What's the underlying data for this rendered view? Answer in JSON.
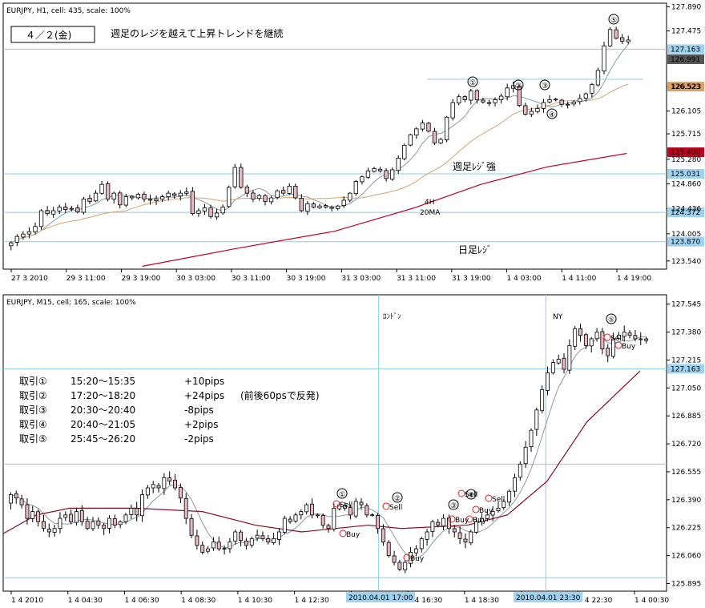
{
  "chart_data": [
    {
      "type": "candlestick",
      "title": "EURJPY, H1, cell: 435, scale: 100%",
      "date_box": "４／２(金)",
      "headline": "週足のレジを越えて上昇トレンドを継続",
      "y_ticks": [
        "127.890",
        "127.475",
        "126.523",
        "126.105",
        "125.715",
        "125.280",
        "124.860",
        "124.436",
        "124.005",
        "123.540"
      ],
      "ylim": [
        123.4,
        127.95
      ],
      "x_ticks": [
        "27 3 2010",
        "29 3 11:00",
        "29 3 19:00",
        "30 3 03:00",
        "30 3 11:00",
        "30 3 19:00",
        "31 3 03:00",
        "31 3 11:00",
        "31 3 19:00",
        "1 4 03:00",
        "1 4 11:00",
        "1 4 19:00"
      ],
      "price_tags": [
        {
          "value": "127.163",
          "bg": "#9fd2f0"
        },
        {
          "value": "126.991",
          "bg": "#555555",
          "color": "#ffffff"
        },
        {
          "value": "126.523",
          "bg": "#d9a26a"
        },
        {
          "value": "125.400",
          "bg": "#c00020",
          "color": "#ffffff"
        },
        {
          "value": "125.031",
          "bg": "#9fd2f0"
        },
        {
          "value": "124.372",
          "bg": "#9fd2f0"
        },
        {
          "value": "123.870",
          "bg": "#9fd2f0"
        }
      ],
      "hlines": [
        127.163,
        125.031,
        124.372,
        123.87
      ],
      "annotations": [
        "週足ﾚｼﾞ強",
        "4H",
        "20MA",
        "日足ﾚｼﾞ"
      ],
      "markers": [
        "①",
        "②",
        "③",
        "④",
        "⑤"
      ],
      "colors": {
        "up": "#ffffff",
        "down": "#e8b8c0",
        "sma_fast": "#8a9aaa",
        "sma_slow": "#d9a26a",
        "ma_long": "#c00020",
        "hline": "#8ccbe8"
      },
      "closes": [
        123.85,
        123.96,
        124.0,
        124.04,
        124.13,
        124.4,
        124.35,
        124.4,
        124.46,
        124.42,
        124.44,
        124.38,
        124.6,
        124.56,
        124.7,
        124.85,
        124.6,
        124.7,
        124.5,
        124.64,
        124.62,
        124.68,
        124.6,
        124.58,
        124.6,
        124.64,
        124.7,
        124.66,
        124.7,
        124.72,
        124.35,
        124.4,
        124.45,
        124.3,
        124.36,
        124.46,
        124.8,
        125.14,
        124.8,
        124.7,
        124.6,
        124.66,
        124.56,
        124.62,
        124.74,
        124.7,
        124.82,
        124.62,
        124.4,
        124.52,
        124.46,
        124.48,
        124.46,
        124.44,
        124.48,
        124.58,
        124.7,
        124.9,
        124.98,
        125.08,
        125.12,
        125.08,
        124.95,
        125.1,
        125.3,
        125.52,
        125.7,
        125.8,
        125.9,
        125.76,
        125.56,
        125.62,
        126.0,
        126.25,
        126.35,
        126.3,
        126.45,
        126.3,
        126.26,
        126.24,
        126.3,
        126.36,
        126.5,
        126.54,
        126.2,
        126.05,
        126.1,
        126.15,
        126.25,
        126.3,
        126.3,
        126.22,
        126.22,
        126.26,
        126.32,
        126.4,
        126.56,
        126.8,
        127.22,
        127.5,
        127.35,
        127.3,
        127.32
      ]
    },
    {
      "type": "candlestick",
      "title": "EURJPY, M15, cell: 165, scale: 100%",
      "y_ticks": [
        "127.545",
        "127.380",
        "127.215",
        "127.050",
        "126.885",
        "126.720",
        "126.555",
        "126.390",
        "126.225",
        "126.060",
        "125.895"
      ],
      "ylim": [
        125.85,
        127.6
      ],
      "x_ticks": [
        "1 4 2010",
        "1 4 04:30",
        "1 4 06:30",
        "1 4 08:30",
        "1 4 10:30",
        "1 4 12:30",
        "1 4 14:30",
        "1 4 16:30",
        "1 4 18:30",
        "1 4 20:30",
        "1 4 22:30",
        "1 4 00:30"
      ],
      "time_tags": [
        "2010.04.01 17:00",
        "2010.04.01 23:30"
      ],
      "price_tags": [
        {
          "value": "127.163",
          "bg": "#9fd2f0"
        }
      ],
      "hlines": [
        127.163,
        126.6,
        125.93
      ],
      "session_labels": [
        "ﾛﾝﾄﾞﾝ",
        "NY"
      ],
      "trades": [
        {
          "label": "取引①",
          "time": "15:20〜15:35",
          "result": "+10pips",
          "note": ""
        },
        {
          "label": "取引②",
          "time": "17:20〜18:20",
          "result": "+24pips",
          "note": "(前後60psで反発)"
        },
        {
          "label": "取引③",
          "time": "20:30〜20:40",
          "result": "-8pips",
          "note": ""
        },
        {
          "label": "取引④",
          "time": "20:40〜21:05",
          "result": "+2pips",
          "note": ""
        },
        {
          "label": "取引⑤",
          "time": "25:45〜26:20",
          "result": "-2pips",
          "note": ""
        }
      ],
      "markers": [
        "①",
        "②",
        "③",
        "④",
        "⑤"
      ],
      "signals": [
        "Sell",
        "Buy",
        "Sell",
        "Buy",
        "Buy",
        "Sell",
        "Buy",
        "Sell",
        "Buy",
        "Sell",
        "Buy"
      ],
      "colors": {
        "up": "#ffffff",
        "down": "#e8b8c0",
        "sma_fast": "#8a9aaa",
        "ma_long": "#8b0a20",
        "signal": "#e02020"
      },
      "closes": [
        126.42,
        126.4,
        126.36,
        126.28,
        126.32,
        126.26,
        126.22,
        126.2,
        126.22,
        126.28,
        126.3,
        126.26,
        126.32,
        126.26,
        126.22,
        126.26,
        126.24,
        126.22,
        126.28,
        126.24,
        126.26,
        126.3,
        126.34,
        126.3,
        126.42,
        126.46,
        126.48,
        126.46,
        126.52,
        126.5,
        126.46,
        126.4,
        126.28,
        126.18,
        126.12,
        126.08,
        126.1,
        126.14,
        126.1,
        126.1,
        126.14,
        126.2,
        126.15,
        126.12,
        126.16,
        126.18,
        126.16,
        126.14,
        126.16,
        126.2,
        126.28,
        126.26,
        126.3,
        126.32,
        126.36,
        126.3,
        126.3,
        126.24,
        126.22,
        126.34,
        126.36,
        126.34,
        126.3,
        126.38,
        126.36,
        126.3,
        126.3,
        126.22,
        126.14,
        126.06,
        126.02,
        125.98,
        126.02,
        126.08,
        126.1,
        126.16,
        126.2,
        126.26,
        126.24,
        126.28,
        126.22,
        126.2,
        126.16,
        126.14,
        126.2,
        126.26,
        126.28,
        126.3,
        126.32,
        126.34,
        126.38,
        126.44,
        126.52,
        126.6,
        126.7,
        126.8,
        126.92,
        127.04,
        127.14,
        127.2,
        127.22,
        127.16,
        127.3,
        127.4,
        127.36,
        127.3,
        127.34,
        127.38,
        127.28,
        127.24,
        127.34,
        127.36,
        127.38,
        127.36,
        127.34,
        127.34,
        127.33
      ]
    }
  ]
}
